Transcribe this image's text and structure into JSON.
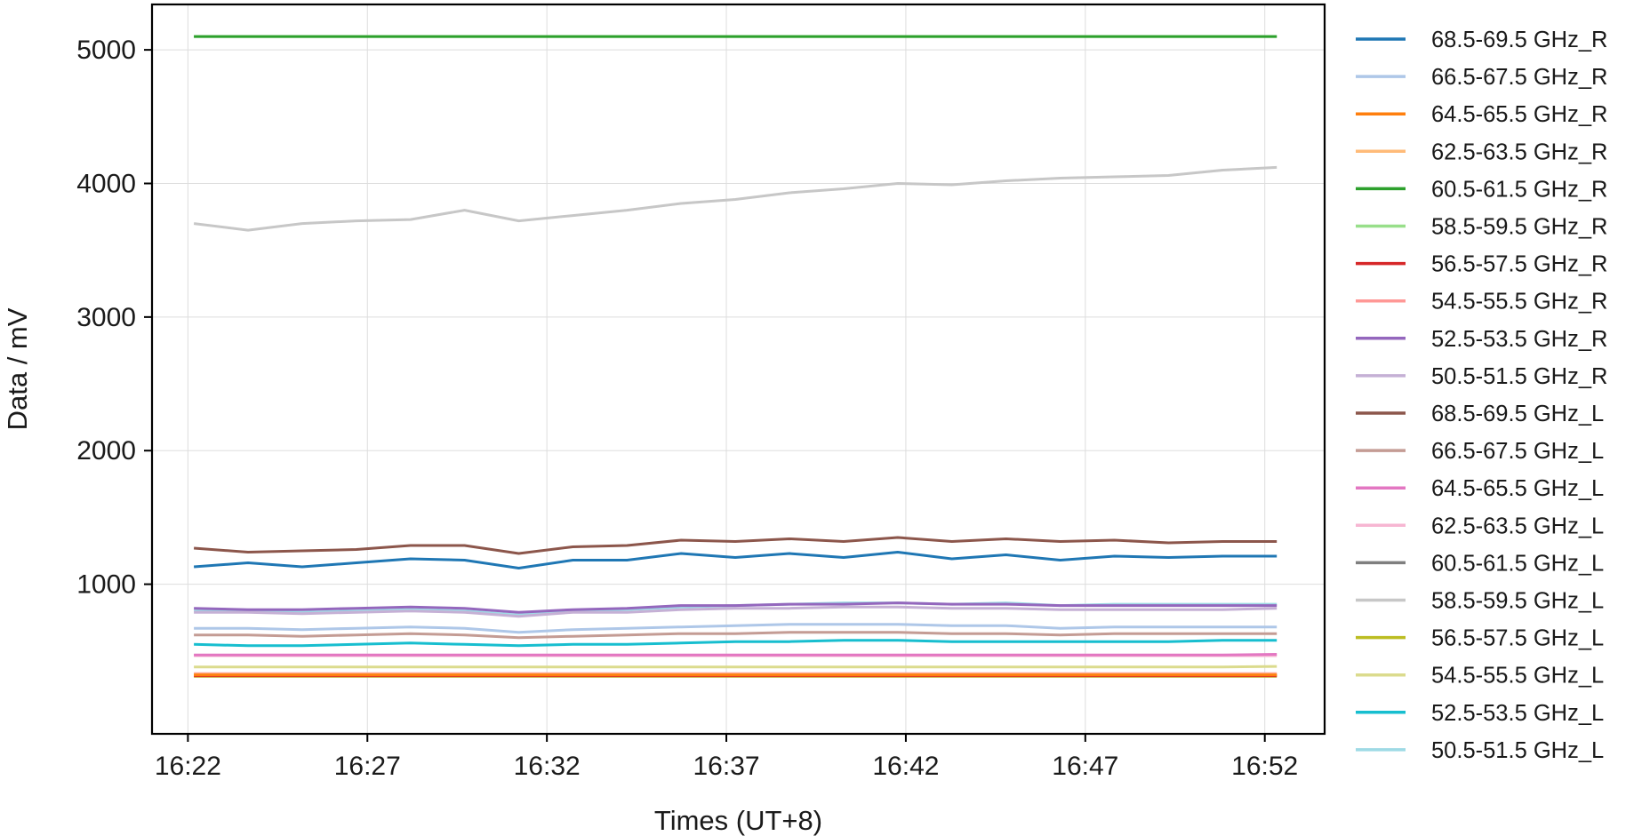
{
  "chart_data": {
    "type": "line",
    "xlabel": "Times (UT+8)",
    "ylabel": "Data / mV",
    "x_range": [
      "16:21:00",
      "16:53:40"
    ],
    "x_ticks": [
      "16:22",
      "16:27",
      "16:32",
      "16:37",
      "16:42",
      "16:47",
      "16:52"
    ],
    "ylim": [
      -120,
      5340
    ],
    "y_ticks": [
      1000,
      2000,
      3000,
      4000,
      5000
    ],
    "grid": true,
    "legend_position": "right, outside plot",
    "time_span": [
      "16:22:10",
      "16:52:20"
    ],
    "series": [
      {
        "name": "68.5-69.5 GHz_R",
        "color": "#1f77b4",
        "values": [
          1130,
          1160,
          1130,
          1160,
          1190,
          1180,
          1120,
          1180,
          1180,
          1230,
          1200,
          1230,
          1200,
          1240,
          1190,
          1220,
          1180,
          1210,
          1200,
          1210,
          1210
        ]
      },
      {
        "name": "66.5-67.5 GHz_R",
        "color": "#aec7e8",
        "values": [
          670,
          670,
          660,
          670,
          680,
          670,
          640,
          660,
          670,
          680,
          690,
          700,
          700,
          700,
          690,
          690,
          670,
          680,
          680,
          680,
          680
        ]
      },
      {
        "name": "64.5-65.5 GHz_R",
        "color": "#ff7f0e",
        "values": [
          320,
          320,
          320,
          320,
          320,
          320,
          320,
          320,
          320,
          320,
          320,
          320,
          320,
          320,
          320,
          320,
          320,
          320,
          320,
          320,
          320
        ]
      },
      {
        "name": "62.5-63.5 GHz_R",
        "color": "#ffbb78",
        "values": [
          325,
          325,
          325,
          325,
          325,
          325,
          325,
          325,
          325,
          325,
          325,
          325,
          325,
          325,
          325,
          325,
          325,
          325,
          325,
          325,
          325
        ]
      },
      {
        "name": "60.5-61.5 GHz_R",
        "color": "#2ca02c",
        "values": [
          5100,
          5100,
          5100,
          5100,
          5100,
          5100,
          5100,
          5100,
          5100,
          5100,
          5100,
          5100,
          5100,
          5100,
          5100,
          5100,
          5100,
          5100,
          5100,
          5100,
          5100
        ]
      },
      {
        "name": "58.5-59.5 GHz_R",
        "color": "#98df8a",
        "values": [
          5100,
          5100,
          5100,
          5100,
          5100,
          5100,
          5100,
          5100,
          5100,
          5100,
          5100,
          5100,
          5100,
          5100,
          5100,
          5100,
          5100,
          5100,
          5100,
          5100,
          5100
        ]
      },
      {
        "name": "56.5-57.5 GHz_R",
        "color": "#d62728",
        "values": [
          315,
          315,
          315,
          315,
          315,
          315,
          315,
          315,
          315,
          315,
          315,
          315,
          315,
          315,
          315,
          315,
          315,
          315,
          315,
          315,
          315
        ]
      },
      {
        "name": "54.5-55.5 GHz_R",
        "color": "#ff9896",
        "values": [
          330,
          330,
          330,
          330,
          330,
          330,
          330,
          330,
          330,
          330,
          330,
          330,
          330,
          330,
          330,
          330,
          330,
          330,
          330,
          330,
          330
        ]
      },
      {
        "name": "52.5-53.5 GHz_R",
        "color": "#9467bd",
        "values": [
          820,
          810,
          810,
          820,
          830,
          820,
          790,
          810,
          820,
          840,
          840,
          850,
          850,
          860,
          850,
          850,
          840,
          840,
          840,
          840,
          840
        ]
      },
      {
        "name": "50.5-51.5 GHz_R",
        "color": "#c5b0d5",
        "values": [
          790,
          790,
          780,
          790,
          800,
          790,
          760,
          790,
          790,
          810,
          820,
          820,
          830,
          830,
          820,
          820,
          810,
          810,
          810,
          810,
          820
        ]
      },
      {
        "name": "68.5-69.5 GHz_L",
        "color": "#8c564b",
        "values": [
          1270,
          1240,
          1250,
          1260,
          1290,
          1290,
          1230,
          1280,
          1290,
          1330,
          1320,
          1340,
          1320,
          1350,
          1320,
          1340,
          1320,
          1330,
          1310,
          1320,
          1320
        ]
      },
      {
        "name": "66.5-67.5 GHz_L",
        "color": "#c49c94",
        "values": [
          620,
          620,
          610,
          620,
          630,
          620,
          600,
          610,
          620,
          630,
          630,
          640,
          640,
          640,
          630,
          630,
          620,
          630,
          630,
          630,
          630
        ]
      },
      {
        "name": "64.5-65.5 GHz_L",
        "color": "#e377c2",
        "values": [
          470,
          470,
          470,
          470,
          470,
          470,
          470,
          470,
          470,
          470,
          470,
          470,
          470,
          470,
          470,
          470,
          470,
          470,
          470,
          470,
          475
        ]
      },
      {
        "name": "62.5-63.5 GHz_L",
        "color": "#f7b6d2",
        "values": [
          465,
          465,
          465,
          465,
          465,
          465,
          465,
          465,
          465,
          465,
          465,
          465,
          465,
          465,
          465,
          465,
          465,
          465,
          465,
          465,
          465
        ]
      },
      {
        "name": "60.5-61.5 GHz_L",
        "color": "#7f7f7f",
        "values": [
          320,
          320,
          320,
          320,
          320,
          320,
          320,
          320,
          320,
          320,
          320,
          320,
          320,
          320,
          320,
          320,
          320,
          320,
          320,
          320,
          320
        ]
      },
      {
        "name": "58.5-59.5 GHz_L",
        "color": "#c7c7c7",
        "values": [
          3700,
          3650,
          3700,
          3720,
          3730,
          3800,
          3720,
          3760,
          3800,
          3850,
          3880,
          3930,
          3960,
          4000,
          3990,
          4020,
          4040,
          4050,
          4060,
          4100,
          4120
        ]
      },
      {
        "name": "56.5-57.5 GHz_L",
        "color": "#bcbd22",
        "values": [
          310,
          310,
          310,
          310,
          310,
          310,
          310,
          310,
          310,
          310,
          310,
          310,
          310,
          310,
          310,
          310,
          310,
          310,
          310,
          310,
          310
        ]
      },
      {
        "name": "54.5-55.5 GHz_L",
        "color": "#dbdb8d",
        "values": [
          380,
          380,
          380,
          380,
          380,
          380,
          380,
          380,
          380,
          380,
          380,
          380,
          380,
          380,
          380,
          380,
          380,
          380,
          380,
          380,
          385
        ]
      },
      {
        "name": "52.5-53.5 GHz_L",
        "color": "#17becf",
        "values": [
          550,
          540,
          540,
          550,
          560,
          550,
          540,
          550,
          550,
          560,
          570,
          570,
          580,
          580,
          570,
          570,
          570,
          570,
          570,
          580,
          580
        ]
      },
      {
        "name": "50.5-51.5 GHz_L",
        "color": "#9edae5",
        "values": [
          800,
          800,
          790,
          800,
          810,
          800,
          770,
          800,
          810,
          830,
          840,
          850,
          860,
          860,
          850,
          860,
          840,
          850,
          850,
          850,
          850
        ]
      }
    ]
  }
}
